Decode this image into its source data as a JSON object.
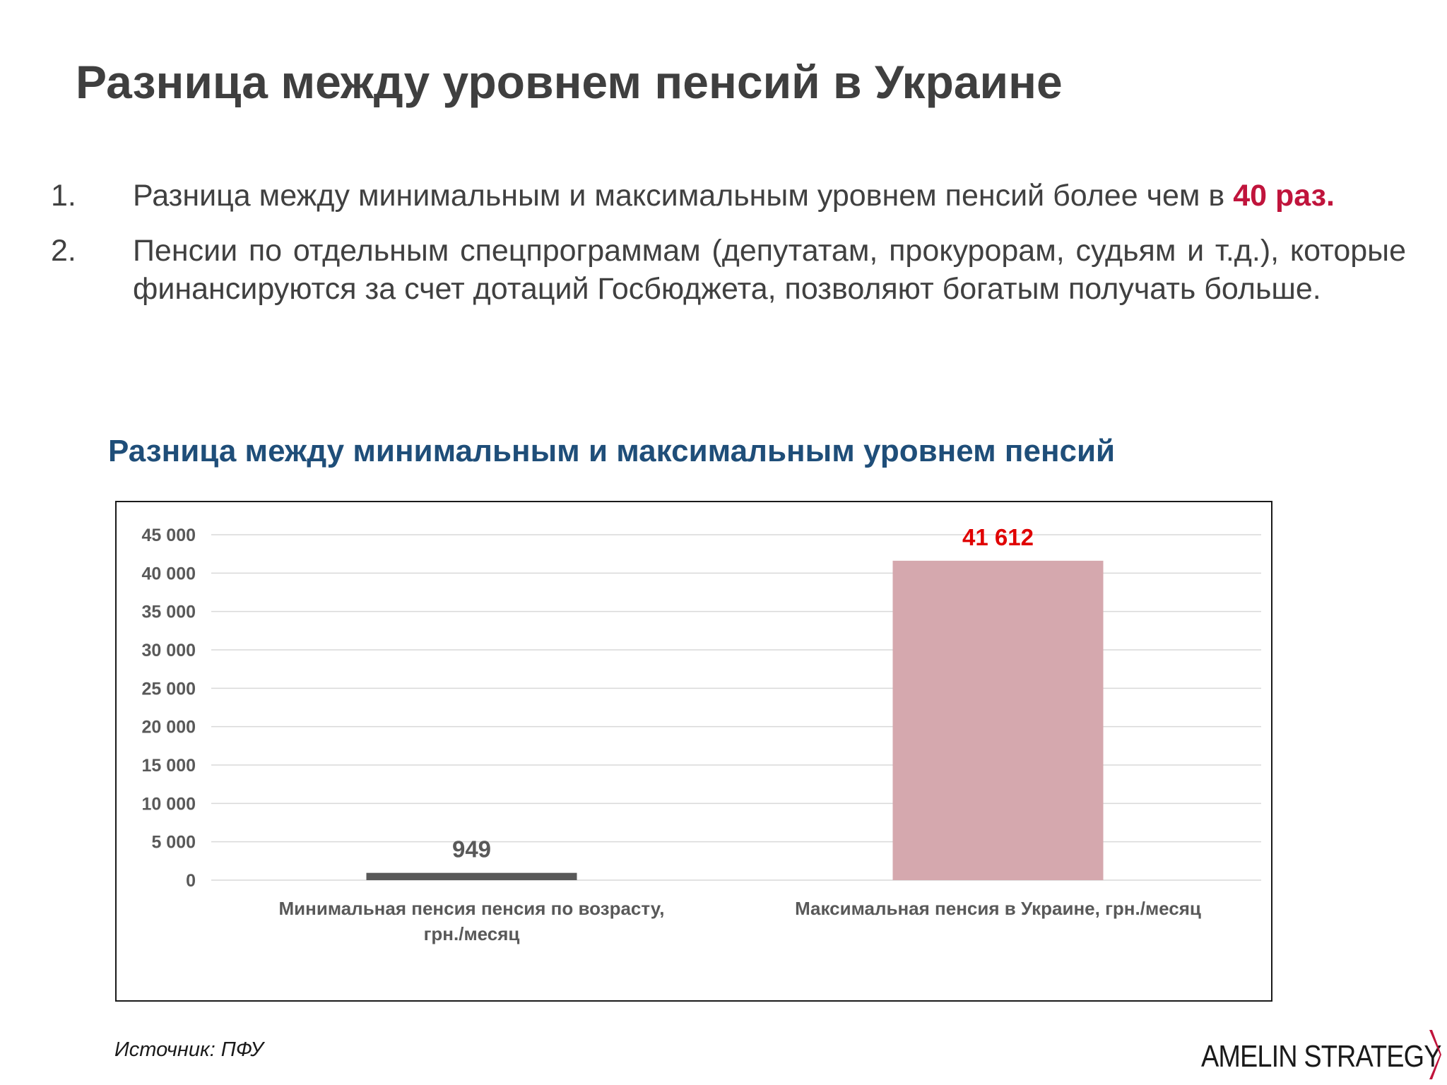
{
  "slide": {
    "title": "Разница между уровнем пенсий в Украине",
    "bullets": [
      {
        "num": "1.",
        "text": "Разница между минимальным и максимальным уровнем пенсий более чем в ",
        "highlight": "40 раз."
      },
      {
        "num": "2.",
        "text": "Пенсии по отдельным спецпрограммам (депутатам, прокурорам, судьям и т.д.), которые финансируются за счет дотаций Госбюджета, позволяют богатым получать больше."
      }
    ],
    "chart_heading": "Разница между минимальным и максимальным уровнем пенсий",
    "source": "Источник: ПФУ",
    "logo_text": "AMELIN STRATEGY"
  },
  "colors": {
    "highlight": "#c0143c",
    "chart_heading": "#1f4e79",
    "bar_min": "#595959",
    "bar_max": "#d5a8ae",
    "label_max": "#e00000",
    "label_min": "#595959",
    "logo_chevron": "#c0143c"
  },
  "chart_data": {
    "type": "bar",
    "categories": [
      "Минимальная пенсия пенсия по возрасту, грн./месяц",
      "Максимальная пенсия в Украине, грн./месяц"
    ],
    "category_lines": [
      [
        "Минимальная пенсия пенсия по возрасту,",
        "грн./месяц"
      ],
      [
        "Максимальная пенсия в Украине, грн./месяц"
      ]
    ],
    "values": [
      949,
      41612
    ],
    "data_labels": [
      "949",
      "41 612"
    ],
    "ylim": [
      0,
      45000
    ],
    "ytick_values": [
      0,
      5000,
      10000,
      15000,
      20000,
      25000,
      30000,
      35000,
      40000,
      45000
    ],
    "ytick_labels": [
      "0",
      "5 000",
      "10 000",
      "15 000",
      "20 000",
      "25 000",
      "30 000",
      "35 000",
      "40 000",
      "45 000"
    ],
    "grid": true,
    "legend": "none"
  }
}
